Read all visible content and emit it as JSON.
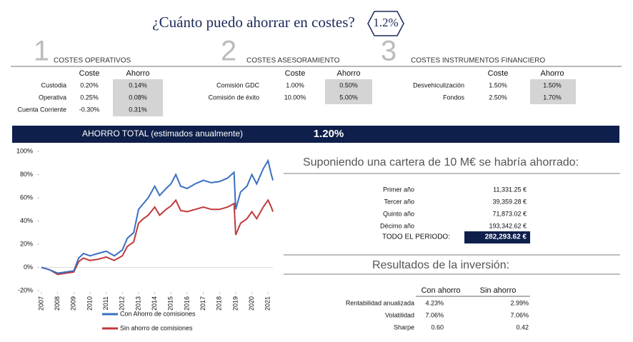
{
  "header": {
    "title": "¿Cuánto puedo ahorrar en costes?",
    "badge": "1.2%"
  },
  "sections": [
    {
      "number": "1",
      "title": "COSTES OPERATIVOS",
      "headers": [
        "Coste",
        "Ahorro"
      ],
      "rows": [
        [
          "Custodia",
          "0.20%",
          "0.14%"
        ],
        [
          "Operativa",
          "0.25%",
          "0.08%"
        ],
        [
          "Cuenta Corriente",
          "-0.30%",
          "0.31%"
        ]
      ]
    },
    {
      "number": "2",
      "title": "COSTES ASESORAMIENTO",
      "headers": [
        "Coste",
        "Ahorro"
      ],
      "rows": [
        [
          "Comisión GDC",
          "1.00%",
          "0.50%"
        ],
        [
          "Comisión de éxito",
          "10.00%",
          "5.00%"
        ]
      ]
    },
    {
      "number": "3",
      "title": "COSTES INSTRUMENTOS FINANCIERO",
      "headers": [
        "Coste",
        "Ahorro"
      ],
      "rows": [
        [
          "Desvehiculización",
          "1.50%",
          "1.50%"
        ],
        [
          "Fondos",
          "2.50%",
          "1.70%"
        ]
      ]
    }
  ],
  "banner": {
    "label": "AHORRO TOTAL (estimados anualmente)",
    "value": "1.20%"
  },
  "chart_data": {
    "type": "line",
    "x": [
      2007.0,
      2007.5,
      2008.0,
      2008.5,
      2009.0,
      2009.3,
      2009.6,
      2010.0,
      2010.5,
      2011.0,
      2011.5,
      2012.0,
      2012.3,
      2012.7,
      2013.0,
      2013.3,
      2013.6,
      2014.0,
      2014.3,
      2014.7,
      2015.0,
      2015.3,
      2015.6,
      2016.0,
      2016.5,
      2017.0,
      2017.5,
      2018.0,
      2018.5,
      2018.9,
      2019.0,
      2019.3,
      2019.7,
      2020.0,
      2020.3,
      2020.7,
      2021.0,
      2021.2,
      2021.3
    ],
    "series": [
      {
        "name": "Con Ahorro de comisiones",
        "color": "#3a6fc2",
        "values": [
          0,
          -2,
          -5,
          -4,
          -3,
          8,
          12,
          10,
          12,
          14,
          10,
          15,
          25,
          30,
          50,
          55,
          60,
          70,
          62,
          68,
          72,
          80,
          70,
          68,
          72,
          75,
          73,
          74,
          77,
          82,
          50,
          65,
          70,
          80,
          72,
          85,
          92,
          80,
          75
        ]
      },
      {
        "name": "Sin ahorro de comisiones",
        "color": "#c0393b",
        "values": [
          0,
          -2,
          -6,
          -5,
          -4,
          5,
          8,
          6,
          7,
          9,
          6,
          10,
          18,
          22,
          38,
          42,
          45,
          52,
          45,
          50,
          53,
          58,
          49,
          48,
          50,
          52,
          50,
          50,
          52,
          55,
          28,
          38,
          42,
          48,
          42,
          52,
          58,
          52,
          48
        ]
      }
    ],
    "xlim": [
      2007,
      2021.3
    ],
    "xticks": [
      2007,
      2008,
      2009,
      2010,
      2011,
      2012,
      2013,
      2014,
      2015,
      2016,
      2017,
      2018,
      2019,
      2020,
      2021
    ],
    "ylim": [
      -20,
      100
    ],
    "yticks": [
      {
        "value": -20,
        "label": "-20%"
      },
      {
        "value": 0,
        "label": "0%"
      },
      {
        "value": 20,
        "label": "20%"
      },
      {
        "value": 40,
        "label": "40%"
      },
      {
        "value": 60,
        "label": "60%"
      },
      {
        "value": 80,
        "label": "80%"
      },
      {
        "value": 100,
        "label": "100%"
      }
    ]
  },
  "savings": {
    "title": "Suponiendo una cartera de 10 M€ se habría ahorrado:",
    "rows": [
      [
        "Primer año",
        "11,331.25 €"
      ],
      [
        "Tercer año",
        "39,359.28 €"
      ],
      [
        "Quinto año",
        "71,873.02 €"
      ],
      [
        "Décimo año",
        "193,342.62 €"
      ]
    ],
    "total_label": "TODO EL PERIODO:",
    "total_value": "282,293.62 €"
  },
  "results": {
    "title": "Resultados de la inversión:",
    "headers": [
      "Con ahorro",
      "Sin ahorro"
    ],
    "rows": [
      [
        "Rentabilidad anualizada",
        "4.23%",
        "2.99%"
      ],
      [
        "Volatilidad",
        "7.06%",
        "7.06%"
      ],
      [
        "Sharpe",
        "0.60",
        "0.42"
      ]
    ]
  }
}
